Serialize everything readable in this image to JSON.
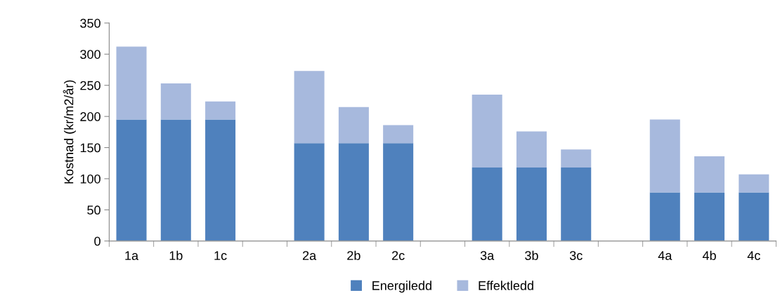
{
  "chart_data": {
    "type": "bar",
    "stacked": true,
    "ylabel": "Kostnad (kr/m2/år)",
    "categories": [
      "1a",
      "1b",
      "1c",
      null,
      "2a",
      "2b",
      "2c",
      null,
      "3a",
      "3b",
      "3c",
      null,
      "4a",
      "4b",
      "4c"
    ],
    "series": [
      {
        "name": "Energiledd",
        "color": "#4f81bd",
        "values": [
          195,
          195,
          195,
          null,
          157,
          157,
          157,
          null,
          118,
          118,
          118,
          null,
          78,
          78,
          78
        ]
      },
      {
        "name": "Effektledd",
        "color": "#a7b9dd",
        "values": [
          117,
          58,
          29,
          null,
          116,
          58,
          29,
          null,
          117,
          58,
          29,
          null,
          117,
          58,
          29
        ]
      }
    ],
    "ylim": [
      0,
      350
    ],
    "yticks": [
      0,
      50,
      100,
      150,
      200,
      250,
      300,
      350
    ],
    "grid": false,
    "legend": "bottom"
  }
}
